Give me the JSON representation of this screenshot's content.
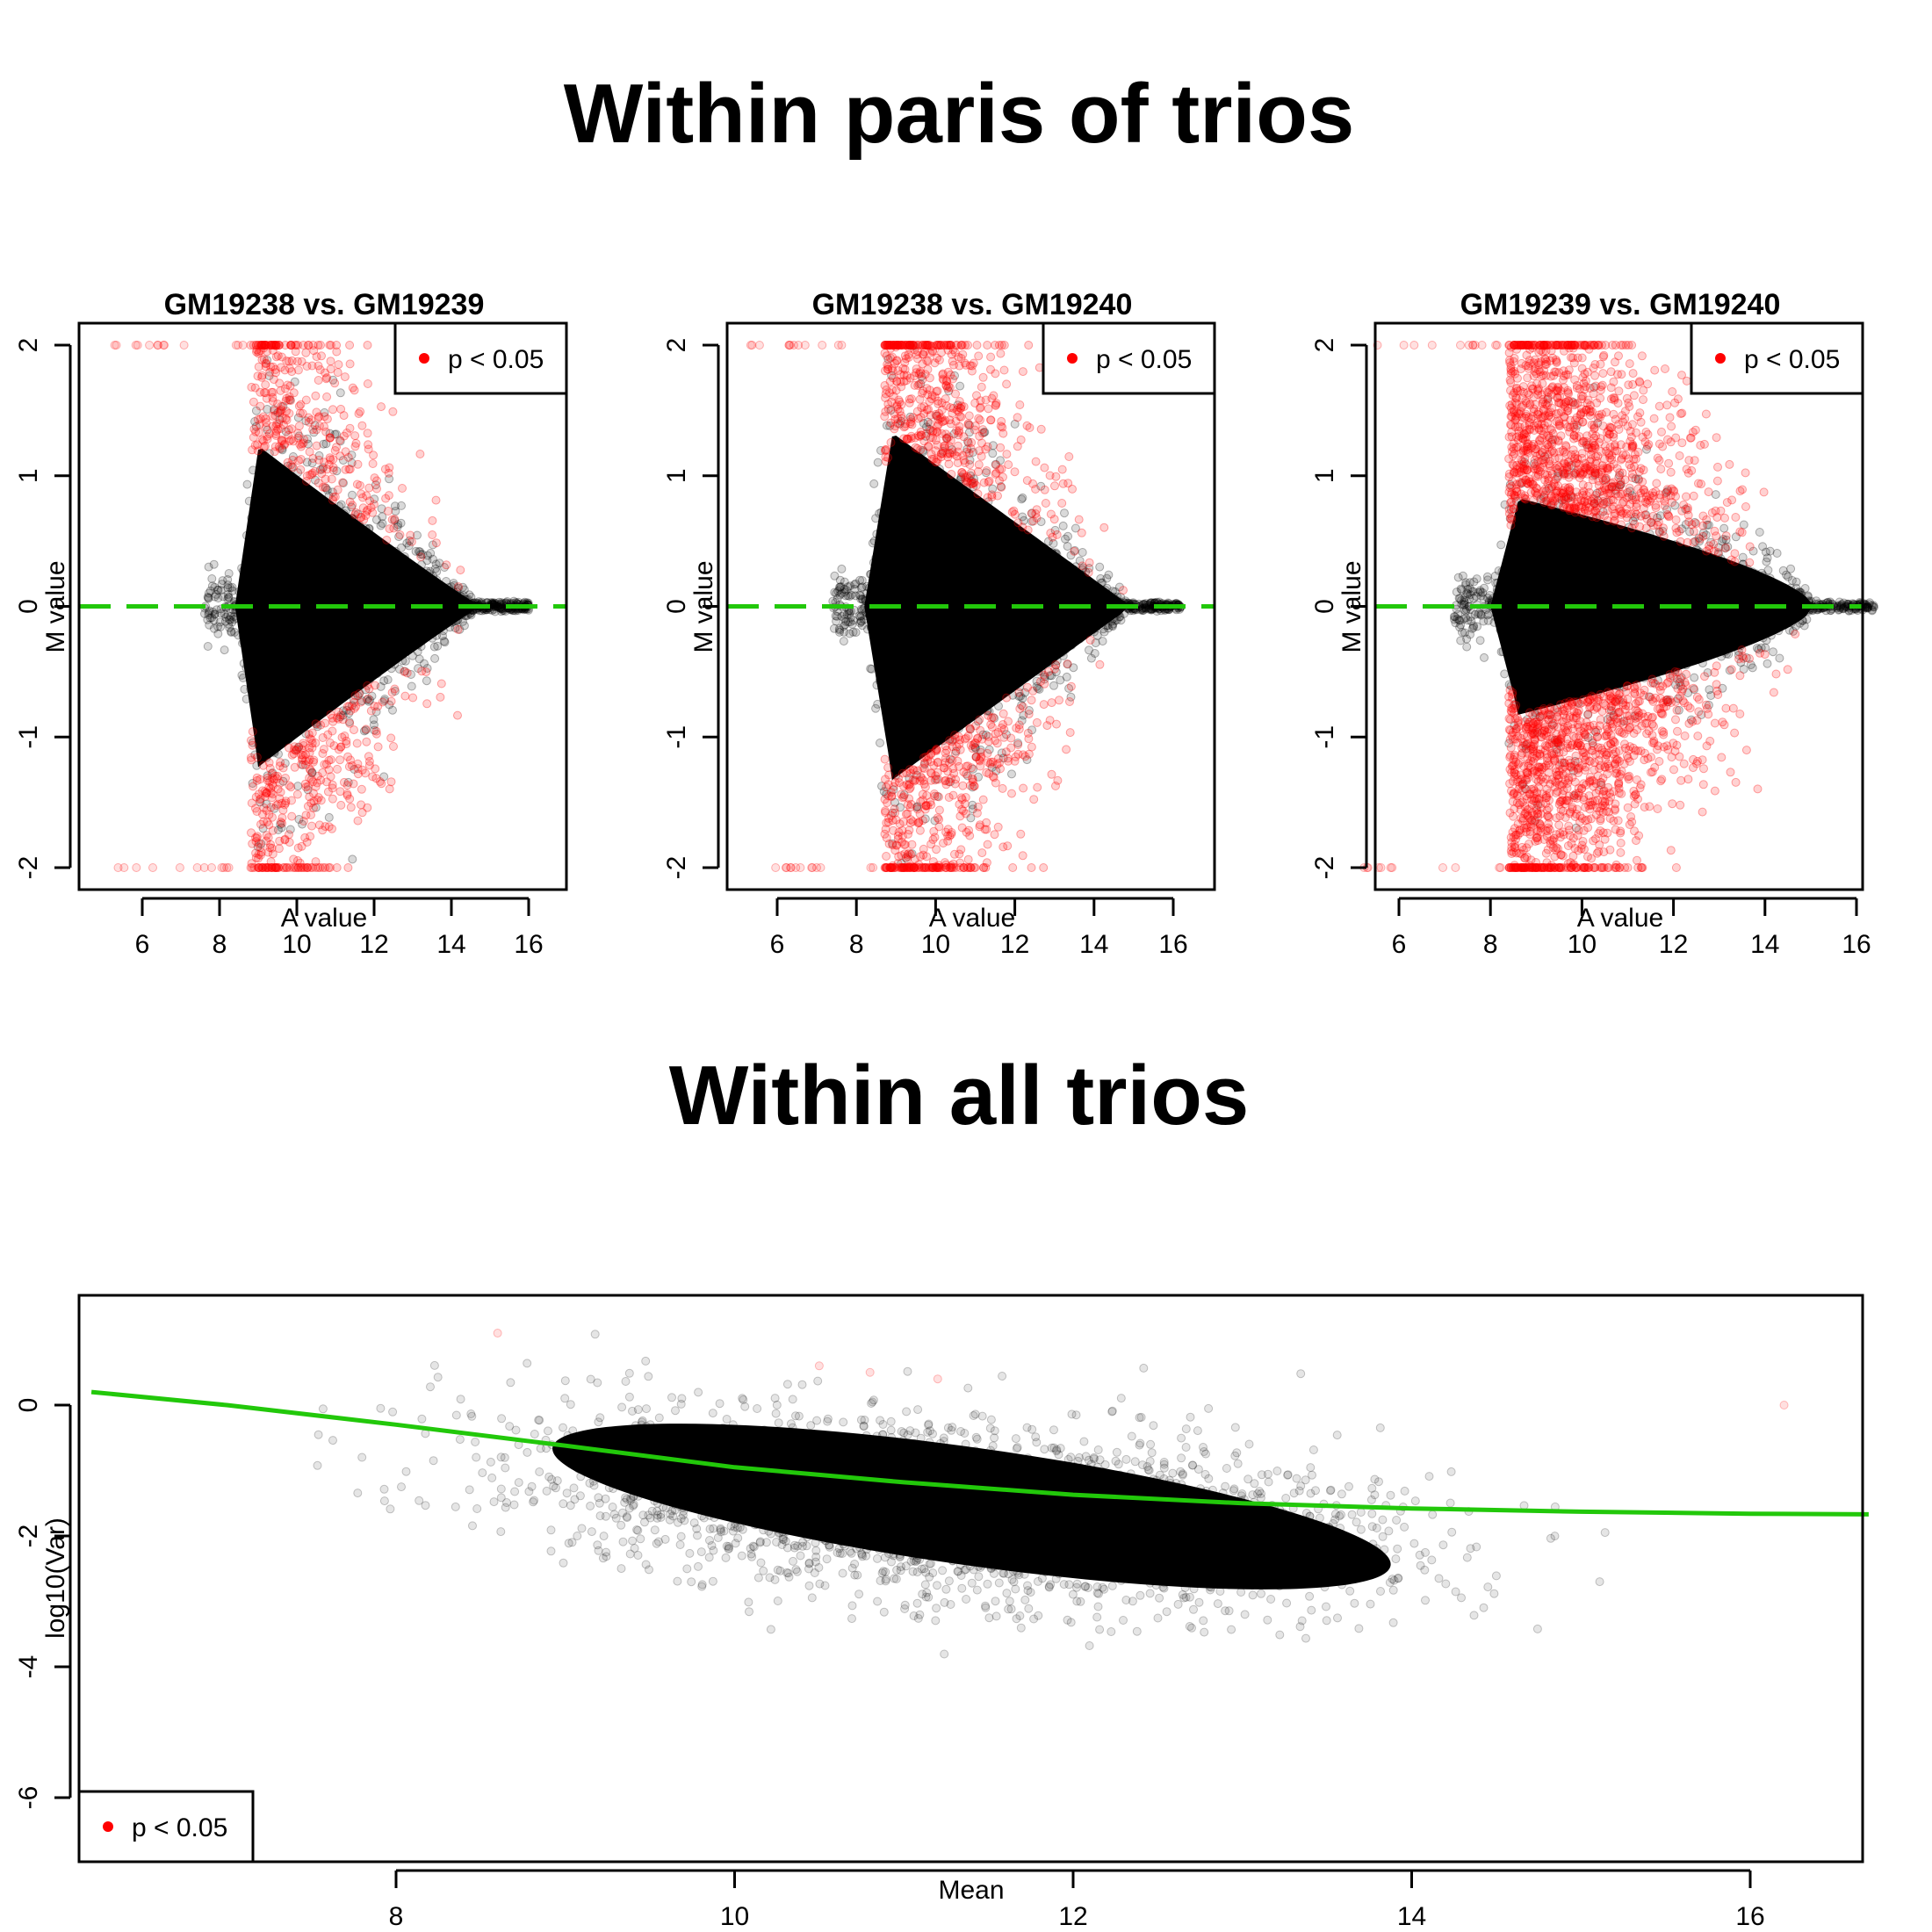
{
  "figure": {
    "title_top": "Within paris of trios",
    "title_bottom": "Within all trios"
  },
  "colors": {
    "points": "#000000",
    "significant": "#ff0000",
    "reference_line": "#22c80a",
    "frame": "#000000",
    "background": "#ffffff"
  },
  "chart_data": [
    {
      "type": "scatter",
      "title": "GM19238 vs. GM19239",
      "xlabel": "A value",
      "ylabel": "M value",
      "xlim": [
        4.6,
        16.9
      ],
      "ylim": [
        -2.15,
        2.15
      ],
      "xticks": [
        6,
        8,
        10,
        12,
        14,
        16
      ],
      "yticks": [
        -2,
        -1,
        0,
        1,
        2
      ],
      "legend": {
        "label": "p < 0.05",
        "position": "top-right"
      },
      "reference_line": {
        "y": 0,
        "style": "dashed"
      },
      "shape": {
        "x_start": 8.4,
        "x_left": 9.0,
        "x_end": 14.6,
        "spread_left": 1.2,
        "spread_power": 1.05,
        "red_rate": 1.0,
        "clip": 2.0
      },
      "series": [
        {
          "name": "not significant",
          "color": "#000000",
          "description": "MA cloud, wide at A≈9 (|M|≤1.3) narrowing to 0 at A≈14.5"
        },
        {
          "name": "p < 0.05",
          "color": "#ff0000",
          "description": "points beyond the cloud envelope, saturating at M=±2 between A≈8.5 and A≈12"
        }
      ]
    },
    {
      "type": "scatter",
      "title": "GM19238 vs. GM19240",
      "xlabel": "A value",
      "ylabel": "M value",
      "xlim": [
        4.6,
        16.9
      ],
      "ylim": [
        -2.15,
        2.15
      ],
      "xticks": [
        6,
        8,
        10,
        12,
        14,
        16
      ],
      "yticks": [
        -2,
        -1,
        0,
        1,
        2
      ],
      "legend": {
        "label": "p < 0.05",
        "position": "top-right"
      },
      "reference_line": {
        "y": 0,
        "style": "dashed"
      },
      "shape": {
        "x_start": 8.2,
        "x_left": 8.9,
        "x_end": 14.8,
        "spread_left": 1.3,
        "spread_power": 1.0,
        "red_rate": 1.4,
        "clip": 2.0
      },
      "series": [
        {
          "name": "not significant",
          "color": "#000000",
          "description": "MA cloud, wide at A≈9 (|M|≤1.3) narrowing to 0 at A≈14.8"
        },
        {
          "name": "p < 0.05",
          "color": "#ff0000",
          "description": "points beyond the cloud envelope, saturating at M=±2 between A≈8.5 and A≈11"
        }
      ]
    },
    {
      "type": "scatter",
      "title": "GM19239 vs. GM19240",
      "xlabel": "A value",
      "ylabel": "M value",
      "xlim": [
        4.6,
        16.9
      ],
      "ylim": [
        -2.15,
        2.15
      ],
      "xticks": [
        6,
        8,
        10,
        12,
        14,
        16
      ],
      "yticks": [
        -2,
        -1,
        0,
        1,
        2
      ],
      "legend": {
        "label": "p < 0.05",
        "position": "top-right"
      },
      "reference_line": {
        "y": 0,
        "style": "dashed"
      },
      "shape": {
        "x_start": 8.0,
        "x_left": 8.6,
        "x_end": 15.0,
        "spread_left": 0.8,
        "spread_power": 0.7,
        "red_rate": 3.2,
        "clip": 2.0
      },
      "series": [
        {
          "name": "not significant",
          "color": "#000000",
          "description": "MA cloud, |M|≤0.8 at A≈9 narrowing to 0 at A≈15"
        },
        {
          "name": "p < 0.05",
          "color": "#ff0000",
          "description": "large dense red bands above and below the cloud, saturating at M=±2 between A≈9 and A≈11.5"
        }
      ]
    },
    {
      "type": "scatter",
      "title": "",
      "xlabel": "Mean",
      "ylabel": "log10(Var)",
      "xlim": [
        6.2,
        16.7
      ],
      "ylim": [
        -6.8,
        1.8
      ],
      "xticks": [
        8,
        10,
        12,
        14,
        16
      ],
      "yticks": [
        -6,
        -4,
        -2,
        0
      ],
      "legend": {
        "label": "p < 0.05",
        "position": "bottom-left"
      },
      "trend_line": {
        "color": "#22c80a",
        "points": [
          [
            6.2,
            0.2
          ],
          [
            7,
            0.0
          ],
          [
            8,
            -0.3
          ],
          [
            9,
            -0.62
          ],
          [
            10,
            -0.95
          ],
          [
            11,
            -1.18
          ],
          [
            12,
            -1.37
          ],
          [
            13,
            -1.5
          ],
          [
            14,
            -1.58
          ],
          [
            15,
            -1.63
          ],
          [
            16,
            -1.66
          ],
          [
            16.7,
            -1.67
          ]
        ]
      },
      "cloud": {
        "x_mean": 11.3,
        "x_sd": 1.25,
        "y_trend_offset": -0.45,
        "y_sd": 0.65,
        "x_min": 7.5,
        "x_max": 15.5
      },
      "series": [
        {
          "name": "not significant",
          "color": "#000000",
          "description": "dense cloud between Mean≈8.5 and 14, log10(Var) from about 0 to -4"
        },
        {
          "name": "p < 0.05",
          "color": "#ff0000",
          "description": "a few faint points near log10(Var)≈0 to 1"
        }
      ]
    }
  ]
}
